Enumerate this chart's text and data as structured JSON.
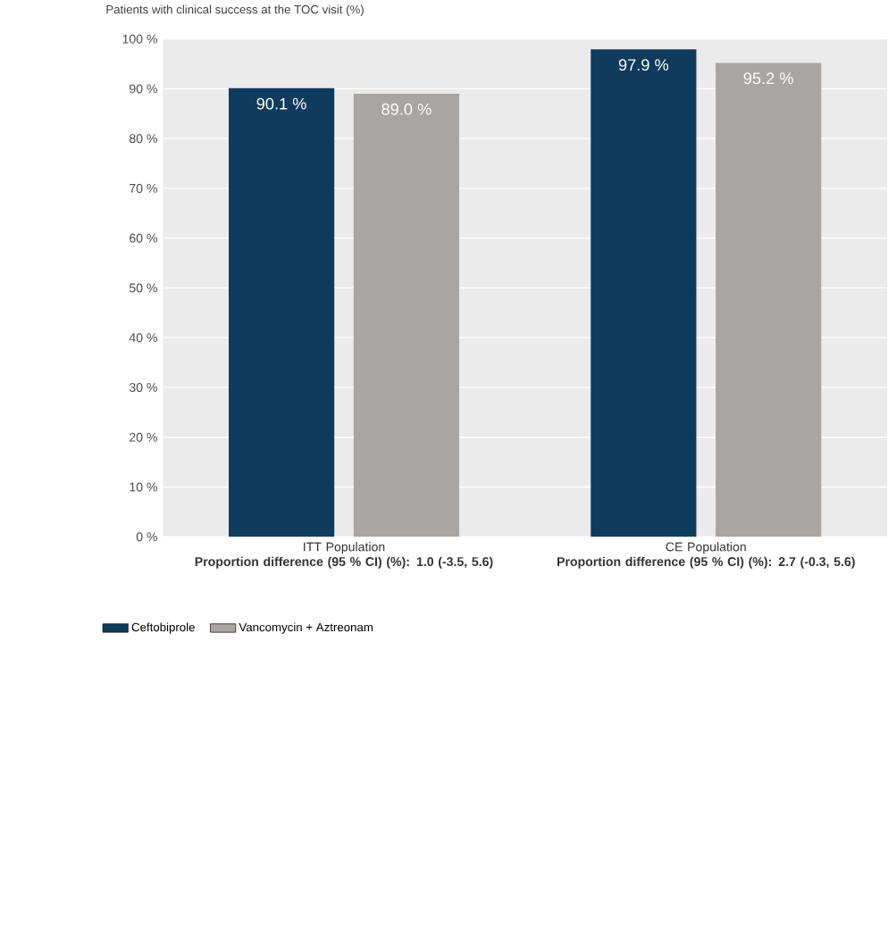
{
  "chart_data": {
    "type": "bar",
    "title": "Patients with clinical success at the TOC visit (%)",
    "categories": [
      "ITT Population",
      "CE Population"
    ],
    "series": [
      {
        "name": "Ceftobiprole",
        "color": "#0f3b5c",
        "values": [
          90.1,
          97.9
        ],
        "value_labels": [
          "90.1 %",
          "97.9 %"
        ]
      },
      {
        "name": "Vancomycin + Aztreonam",
        "color": "#a9a5a3",
        "values": [
          89.0,
          95.2
        ],
        "value_labels": [
          "89.0 %",
          "95.2 %"
        ]
      }
    ],
    "ylim": [
      0,
      100
    ],
    "yticks": [
      {
        "value": 0,
        "label": "0 %"
      },
      {
        "value": 10,
        "label": "10 %"
      },
      {
        "value": 20,
        "label": "20 %"
      },
      {
        "value": 30,
        "label": "30 %"
      },
      {
        "value": 40,
        "label": "40 %"
      },
      {
        "value": 50,
        "label": "50 %"
      },
      {
        "value": 60,
        "label": "60 %"
      },
      {
        "value": 70,
        "label": "70 %"
      },
      {
        "value": 80,
        "label": "80 %"
      },
      {
        "value": 90,
        "label": "90 %"
      },
      {
        "value": 100,
        "label": "100 %"
      }
    ],
    "grid": "y",
    "legend": "bottom",
    "annotations": [
      "Proportion difference (95 % CI) (%): 1.0 (-3.5, 5.6)",
      "Proportion difference (95 % CI) (%): 2.7 (-0.3, 5.6)"
    ]
  }
}
